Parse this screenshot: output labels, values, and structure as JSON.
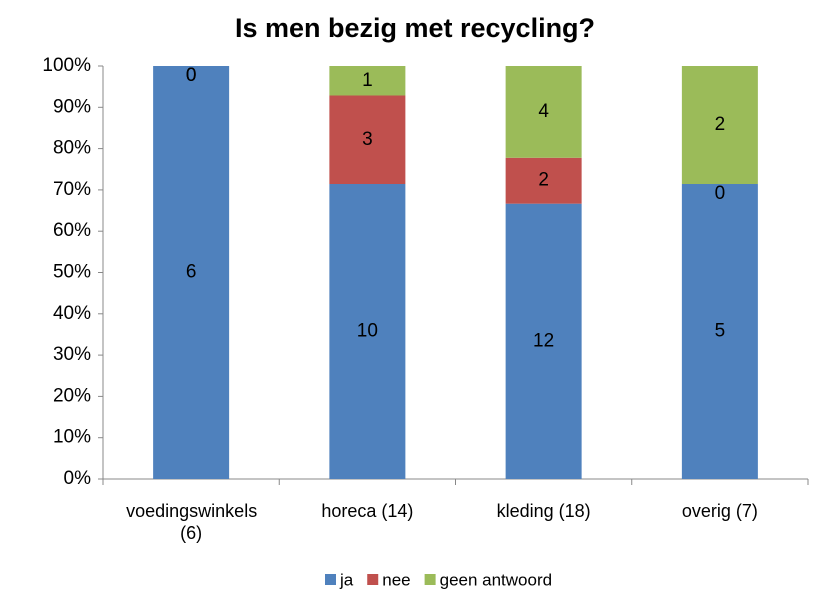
{
  "chart_data": {
    "type": "bar",
    "stacking": "percent",
    "title": "Is men bezig met recycling?",
    "categories": [
      "voedingswinkels (6)",
      "horeca (14)",
      "kleding (18)",
      "overig (7)"
    ],
    "series": [
      {
        "name": "ja",
        "color": "#4f81bd",
        "values": [
          6,
          10,
          12,
          5
        ]
      },
      {
        "name": "nee",
        "color": "#c0504d",
        "values": [
          0,
          3,
          2,
          0
        ]
      },
      {
        "name": "geen antwoord",
        "color": "#9bbb59",
        "values": [
          0,
          1,
          4,
          2
        ]
      }
    ],
    "ylim": [
      0,
      100
    ],
    "yticks": [
      {
        "value": 0,
        "label": "0%"
      },
      {
        "value": 10,
        "label": "10%"
      },
      {
        "value": 20,
        "label": "20%"
      },
      {
        "value": 30,
        "label": "30%"
      },
      {
        "value": 40,
        "label": "40%"
      },
      {
        "value": 50,
        "label": "50%"
      },
      {
        "value": 60,
        "label": "60%"
      },
      {
        "value": 70,
        "label": "70%"
      },
      {
        "value": 80,
        "label": "80%"
      },
      {
        "value": 90,
        "label": "90%"
      },
      {
        "value": 100,
        "label": "100%"
      }
    ],
    "legend": "bottom"
  }
}
